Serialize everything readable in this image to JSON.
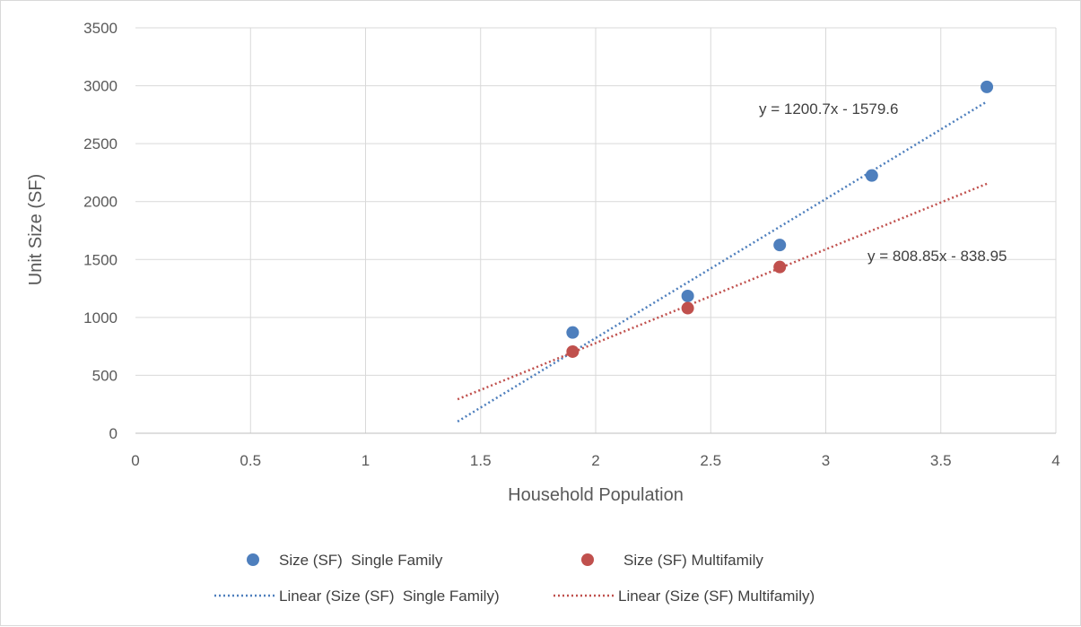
{
  "chart_data": {
    "type": "scatter",
    "title": "",
    "xlabel": "Household Population",
    "ylabel": "Unit Size (SF)",
    "xlim": [
      0,
      4
    ],
    "ylim": [
      0,
      3500
    ],
    "xticks": [
      0,
      0.5,
      1,
      1.5,
      2,
      2.5,
      3,
      3.5,
      4
    ],
    "yticks": [
      0,
      500,
      1000,
      1500,
      2000,
      2500,
      3000,
      3500
    ],
    "xtick_labels": [
      "0",
      "0.5",
      "1",
      "1.5",
      "2",
      "2.5",
      "3",
      "3.5",
      "4"
    ],
    "ytick_labels": [
      "0",
      "500",
      "1000",
      "1500",
      "2000",
      "2500",
      "3000",
      "3500"
    ],
    "grid": true,
    "legend_position": "bottom",
    "series": [
      {
        "name": "Size (SF)  Single Family",
        "color": "#4e7fbd",
        "x": [
          1.9,
          2.4,
          2.8,
          3.2,
          3.7
        ],
        "y": [
          870,
          1185,
          1625,
          2225,
          2990
        ]
      },
      {
        "name": "Size (SF) Multifamily",
        "color": "#c0504d",
        "x": [
          1.9,
          2.4,
          2.8
        ],
        "y": [
          705,
          1080,
          1435
        ]
      }
    ],
    "trendlines": [
      {
        "name": "Linear (Size (SF)  Single Family)",
        "color": "#4e7fbd",
        "slope": 1200.7,
        "intercept": -1579.6,
        "x_range": [
          1.4,
          3.7
        ],
        "equation": "y = 1200.7x - 1579.6"
      },
      {
        "name": "Linear (Size (SF) Multifamily)",
        "color": "#c0504d",
        "slope": 808.85,
        "intercept": -838.95,
        "x_range": [
          1.4,
          3.7
        ],
        "equation": "y = 808.85x - 838.95"
      }
    ]
  }
}
